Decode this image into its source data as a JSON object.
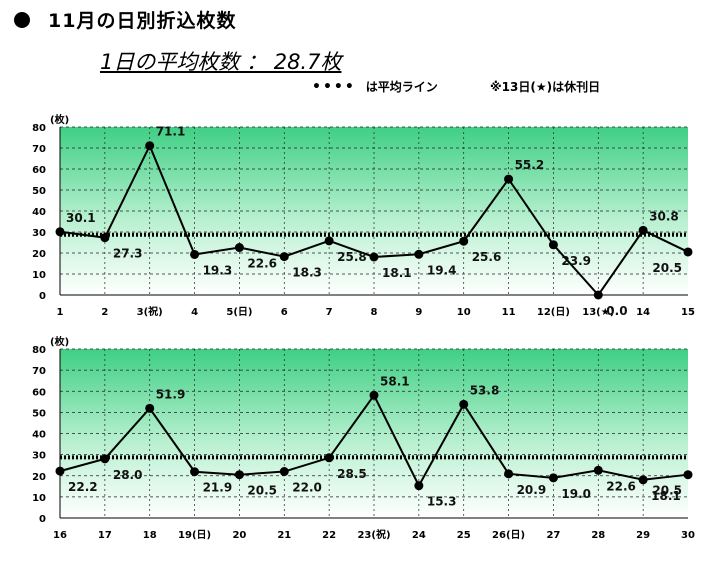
{
  "header": {
    "title": "11月の日別折込枚数",
    "average": "1日の平均枚数 ： 28.7枚",
    "legend_dots": "••••",
    "legend_text": "は平均ライン",
    "note": "※13日(★)は休刊日"
  },
  "chart_data": [
    {
      "type": "line",
      "unit_label": "(枚)",
      "ylim": [
        0,
        80
      ],
      "yticks": [
        "0",
        "10",
        "20",
        "30",
        "40",
        "50",
        "60",
        "70",
        "80"
      ],
      "grid": true,
      "average_line": 28.7,
      "categories": [
        "1",
        "2",
        "3(祝)",
        "4",
        "5(日)",
        "6",
        "7",
        "8",
        "9",
        "10",
        "11",
        "12(日)",
        "13(★)",
        "14",
        "15"
      ],
      "values": [
        30.1,
        27.3,
        71.1,
        19.3,
        22.6,
        18.3,
        25.8,
        18.1,
        19.4,
        25.6,
        55.2,
        23.9,
        0.0,
        30.8,
        20.5
      ],
      "labels": [
        "30.1",
        "27.3",
        "71.1",
        "19.3",
        "22.6",
        "18.3",
        "25.8",
        "18.1",
        "19.4",
        "25.6",
        "55.2",
        "23.9",
        "0.0",
        "30.8",
        "20.5"
      ]
    },
    {
      "type": "line",
      "unit_label": "(枚)",
      "ylim": [
        0,
        80
      ],
      "yticks": [
        "0",
        "10",
        "20",
        "30",
        "40",
        "50",
        "60",
        "70",
        "80"
      ],
      "grid": true,
      "average_line": 28.7,
      "categories": [
        "16",
        "17",
        "18",
        "19(日)",
        "20",
        "21",
        "22",
        "23(祝)",
        "24",
        "25",
        "26(日)",
        "27",
        "28",
        "29",
        "30"
      ],
      "values": [
        22.2,
        28.0,
        51.9,
        21.9,
        20.5,
        22.0,
        28.5,
        58.1,
        15.3,
        53.8,
        20.9,
        19.0,
        22.6,
        18.1,
        20.5
      ],
      "labels": [
        "22.2",
        "28.0",
        "51.9",
        "21.9",
        "20.5",
        "22.0",
        "28.5",
        "58.1",
        "15.3",
        "53.8",
        "20.9",
        "19.0",
        "22.6",
        "18.1",
        "20.5"
      ]
    }
  ]
}
